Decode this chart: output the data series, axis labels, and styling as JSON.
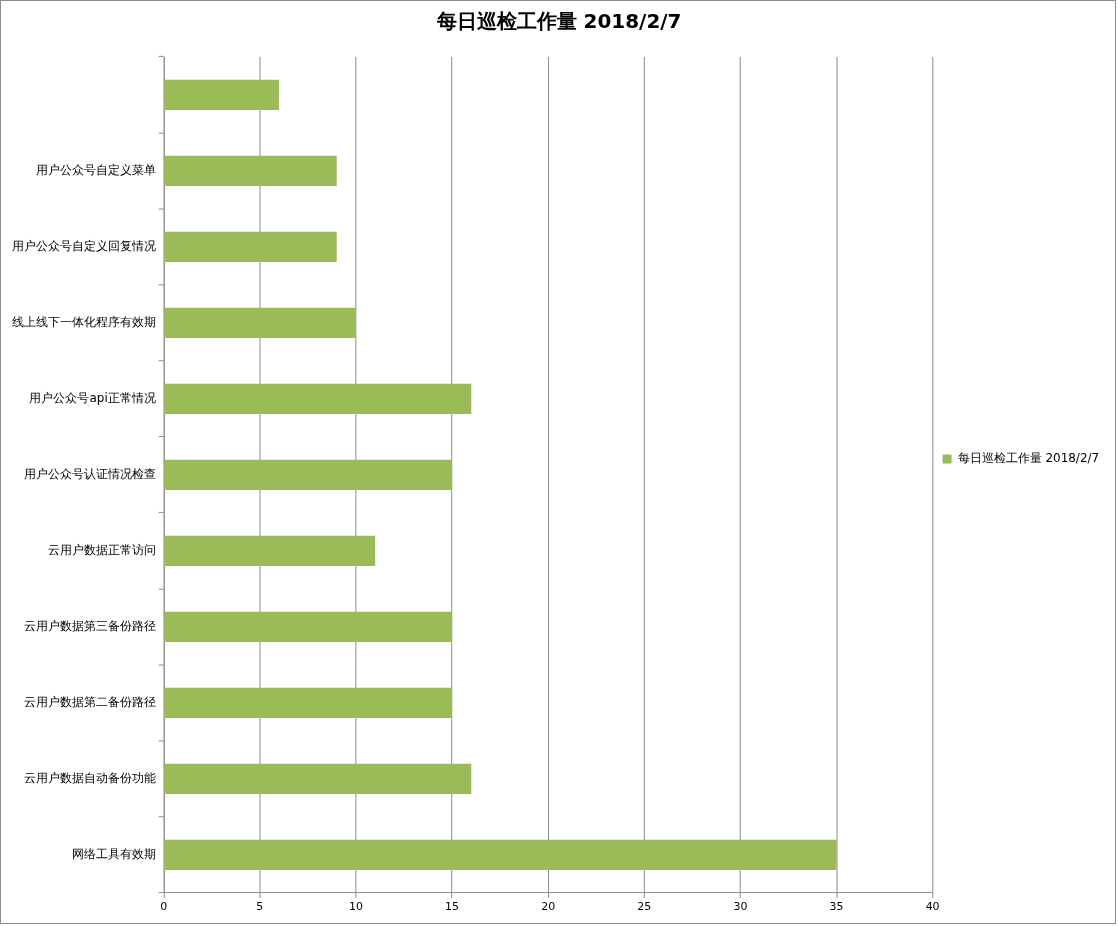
{
  "chart_data": {
    "type": "bar",
    "orientation": "horizontal",
    "title": "每日巡检工作量 2018/2/7",
    "categories": [
      null,
      "用户公众号自定义菜单",
      "用户公众号自定义回复情况",
      "线上线下一体化程序有效期",
      "用户公众号api正常情况",
      "用户公众号认证情况检查",
      "云用户数据正常访问",
      "云用户数据第三备份路径",
      "云用户数据第二备份路径",
      "云用户数据自动备份功能",
      "网络工具有效期"
    ],
    "series": [
      {
        "name": "每日巡检工作量 2018/2/7",
        "color": "#9bbb59",
        "values": [
          6,
          9,
          9,
          10,
          16,
          15,
          11,
          15,
          15,
          16,
          35
        ]
      }
    ],
    "xlim": [
      0,
      40
    ],
    "xticks": [
      0,
      5,
      10,
      15,
      20,
      25,
      30,
      35,
      40
    ],
    "grid": "x",
    "legend": "right"
  }
}
